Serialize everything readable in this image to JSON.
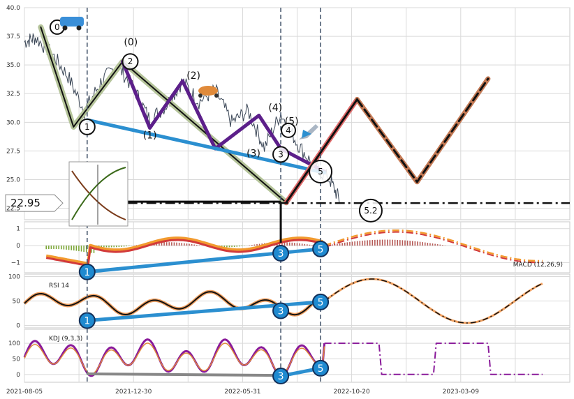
{
  "chart_data": {
    "type": "line",
    "panels": [
      {
        "name": "price",
        "ylim": [
          21.5,
          40.0
        ],
        "yticks": [
          "22.5",
          "25.0",
          "27.5",
          "30.0",
          "32.5",
          "35.0",
          "37.5",
          "40.0"
        ],
        "series": [
          {
            "role": "ohlc-sparkline",
            "x": [
              0,
              0.02,
              0.05,
              0.08,
              0.11,
              0.14,
              0.17,
              0.2,
              0.23,
              0.26,
              0.29,
              0.32,
              0.35,
              0.38,
              0.41,
              0.44,
              0.47,
              0.5,
              0.53,
              0.56,
              0.58
            ],
            "y": [
              37.0,
              37.4,
              36.0,
              34.0,
              31.0,
              33.5,
              35.0,
              33.0,
              30.2,
              31.5,
              33.6,
              31.8,
              32.8,
              30.0,
              31.0,
              27.8,
              30.8,
              28.2,
              26.2,
              25.0,
              23.0
            ]
          },
          {
            "role": "wave-path",
            "x": [
              0.03,
              0.09,
              0.18,
              0.48
            ],
            "y": [
              38.3,
              29.6,
              35.3,
              23.0
            ]
          },
          {
            "role": "subwave-path",
            "x": [
              0.18,
              0.23,
              0.29,
              0.35,
              0.43,
              0.47,
              0.55
            ],
            "y": [
              35.3,
              29.5,
              33.6,
              27.7,
              30.6,
              27.7,
              25.7
            ]
          },
          {
            "role": "projection-path",
            "x": [
              0.48,
              0.61,
              0.72,
              0.85
            ],
            "y": [
              23.0,
              32.0,
              24.8,
              33.8
            ]
          }
        ],
        "wave_labels": [
          "(0)",
          "(1)",
          "(2)",
          "(3)",
          "(4)",
          "(5)"
        ],
        "circle_labels": [
          "0",
          "1",
          "2",
          "3",
          "4",
          "5",
          "5.2"
        ],
        "price_tag": "22.95"
      },
      {
        "name": "macd",
        "label": "MACD (12,26,9)",
        "ylim": [
          -1.6,
          1.4
        ],
        "yticks": [
          "−1",
          "0",
          "1"
        ]
      },
      {
        "name": "rsi",
        "label": "RSI 14",
        "ylim": [
          -5,
          105
        ],
        "yticks": [
          "0",
          "50",
          "100"
        ]
      },
      {
        "name": "kdj",
        "label": "KDJ (9,3,3)",
        "ylim": [
          -25,
          145
        ],
        "yticks": [
          "0",
          "50",
          "100"
        ]
      }
    ],
    "divergence_labels": [
      "1",
      "3",
      "5"
    ],
    "x_tick_labels": [
      "2021-08-05",
      "2021-12-30",
      "2022-05-31",
      "2022-10-20",
      "2023-03-09"
    ],
    "colors": {
      "wave": "#b5c49a",
      "subwave": "#5c1f8a",
      "trendline": "#2b8fd0",
      "proj_red": "#e06a6a",
      "proj_brown": "#c47a55",
      "grid": "#d9d9d9",
      "vline": "#4a5a70",
      "divergence": "#1f8ad0",
      "macd_pos": "#b55a56",
      "macd_neg": "#7aa534"
    }
  }
}
